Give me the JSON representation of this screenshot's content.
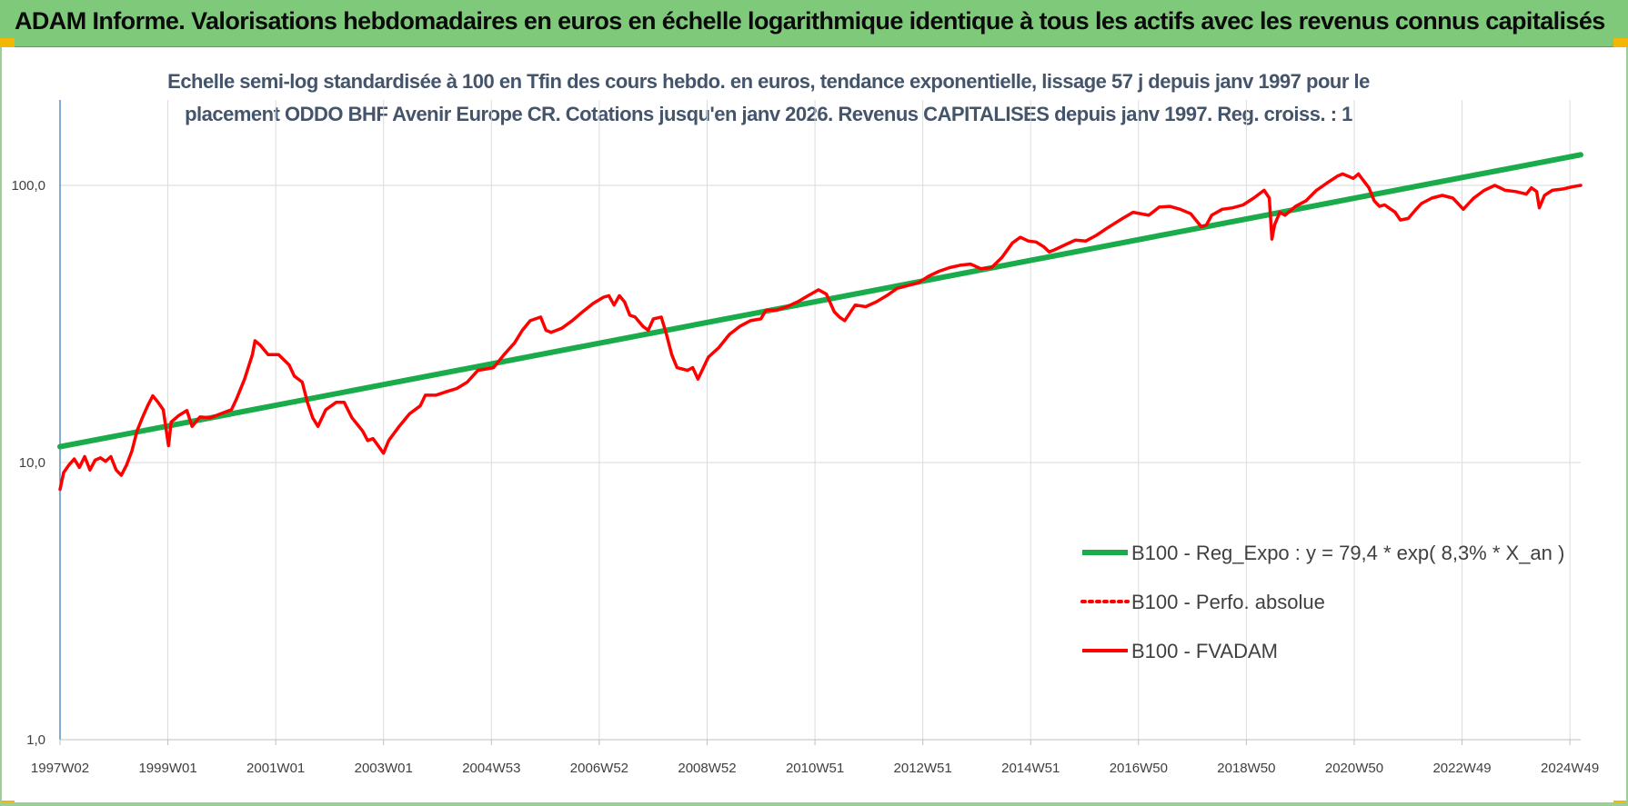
{
  "header": {
    "title": "ADAM Informe. Valorisations hebdomadaires en euros en échelle logarithmique identique à tous les actifs avec les revenus connus capitalisés"
  },
  "chart_data": {
    "type": "line",
    "title_line1": "Echelle semi-log standardisée à 100 en Tfin des cours hebdo. en euros, tendance exponentielle, lissage 57 j depuis janv 1997 pour le",
    "title_line2": "placement ODDO BHF Avenir Europe CR. Cotations jusqu'en janv 2026. Revenus CAPITALISES depuis janv 1997. Reg. croiss. : 1",
    "y_scale": "log",
    "ylim": [
      1,
      200
    ],
    "y_ticks": [
      "1,0",
      "10,0",
      "100,0"
    ],
    "x_range": [
      1997.03,
      2026.04
    ],
    "x_ticks": [
      "1997W02",
      "1999W01",
      "2001W01",
      "2003W01",
      "2004W53",
      "2006W52",
      "2008W52",
      "2010W51",
      "2012W51",
      "2014W51",
      "2016W50",
      "2018W50",
      "2020W50",
      "2022W49",
      "2024W49"
    ],
    "grid": "vertical and horizontal",
    "legend_position": "bottom-right",
    "series": [
      {
        "name": "B100 - Reg_Expo : y = 79,4 * exp( 8,3% *  X_an )",
        "color": "#1aab4a",
        "style": "solid",
        "points": [
          [
            1997.03,
            11.4
          ],
          [
            2026.04,
            129
          ]
        ]
      },
      {
        "name": "B100 - Perfo. absolue",
        "color": "#ff0000",
        "style": "dotted",
        "points": []
      },
      {
        "name": "B100 - FVADAM",
        "color": "#ff0000",
        "style": "solid",
        "points": [
          [
            1997.03,
            8.0
          ],
          [
            1997.1,
            9.2
          ],
          [
            1997.2,
            9.8
          ],
          [
            1997.3,
            10.3
          ],
          [
            1997.4,
            9.6
          ],
          [
            1997.5,
            10.5
          ],
          [
            1997.6,
            9.4
          ],
          [
            1997.7,
            10.2
          ],
          [
            1997.8,
            10.4
          ],
          [
            1997.9,
            10.1
          ],
          [
            1998.0,
            10.5
          ],
          [
            1998.1,
            9.4
          ],
          [
            1998.2,
            9.0
          ],
          [
            1998.3,
            9.8
          ],
          [
            1998.4,
            11.0
          ],
          [
            1998.5,
            13.0
          ],
          [
            1998.6,
            14.5
          ],
          [
            1998.7,
            16.0
          ],
          [
            1998.8,
            17.4
          ],
          [
            1998.9,
            16.5
          ],
          [
            1999.0,
            15.5
          ],
          [
            1999.1,
            11.5
          ],
          [
            1999.15,
            14.0
          ],
          [
            1999.3,
            14.8
          ],
          [
            1999.45,
            15.4
          ],
          [
            1999.55,
            13.5
          ],
          [
            1999.7,
            14.6
          ],
          [
            1999.9,
            14.5
          ],
          [
            2000.1,
            15.0
          ],
          [
            2000.3,
            15.5
          ],
          [
            2000.4,
            17.0
          ],
          [
            2000.55,
            20.0
          ],
          [
            2000.7,
            24.5
          ],
          [
            2000.75,
            27.5
          ],
          [
            2000.85,
            26.5
          ],
          [
            2001.0,
            24.5
          ],
          [
            2001.2,
            24.5
          ],
          [
            2001.4,
            22.5
          ],
          [
            2001.5,
            20.5
          ],
          [
            2001.65,
            19.5
          ],
          [
            2001.75,
            16.5
          ],
          [
            2001.85,
            14.5
          ],
          [
            2001.95,
            13.5
          ],
          [
            2002.1,
            15.5
          ],
          [
            2002.3,
            16.5
          ],
          [
            2002.45,
            16.5
          ],
          [
            2002.6,
            14.5
          ],
          [
            2002.8,
            13.0
          ],
          [
            2002.9,
            12.0
          ],
          [
            2003.0,
            12.2
          ],
          [
            2003.1,
            11.5
          ],
          [
            2003.2,
            10.8
          ],
          [
            2003.3,
            12.0
          ],
          [
            2003.5,
            13.5
          ],
          [
            2003.7,
            15.0
          ],
          [
            2003.9,
            16.0
          ],
          [
            2004.0,
            17.5
          ],
          [
            2004.2,
            17.5
          ],
          [
            2004.4,
            18.0
          ],
          [
            2004.6,
            18.5
          ],
          [
            2004.8,
            19.5
          ],
          [
            2005.0,
            21.5
          ],
          [
            2005.3,
            22.0
          ],
          [
            2005.5,
            24.5
          ],
          [
            2005.7,
            27.0
          ],
          [
            2005.85,
            30.0
          ],
          [
            2006.0,
            32.5
          ],
          [
            2006.2,
            33.5
          ],
          [
            2006.3,
            30.0
          ],
          [
            2006.4,
            29.5
          ],
          [
            2006.6,
            30.5
          ],
          [
            2006.8,
            32.5
          ],
          [
            2007.0,
            35.0
          ],
          [
            2007.2,
            37.5
          ],
          [
            2007.4,
            39.5
          ],
          [
            2007.5,
            40.0
          ],
          [
            2007.6,
            37.0
          ],
          [
            2007.7,
            40.0
          ],
          [
            2007.8,
            38.0
          ],
          [
            2007.9,
            34.0
          ],
          [
            2008.0,
            33.5
          ],
          [
            2008.15,
            31.0
          ],
          [
            2008.25,
            30.0
          ],
          [
            2008.35,
            33.0
          ],
          [
            2008.5,
            33.5
          ],
          [
            2008.6,
            29.0
          ],
          [
            2008.7,
            24.5
          ],
          [
            2008.8,
            22.0
          ],
          [
            2009.0,
            21.5
          ],
          [
            2009.1,
            22.0
          ],
          [
            2009.2,
            20.0
          ],
          [
            2009.4,
            24.0
          ],
          [
            2009.6,
            26.0
          ],
          [
            2009.8,
            29.0
          ],
          [
            2010.0,
            31.0
          ],
          [
            2010.2,
            32.5
          ],
          [
            2010.4,
            33.0
          ],
          [
            2010.5,
            35.5
          ],
          [
            2010.7,
            35.5
          ],
          [
            2010.9,
            36.5
          ],
          [
            2011.1,
            38.0
          ],
          [
            2011.3,
            40.0
          ],
          [
            2011.5,
            42.0
          ],
          [
            2011.65,
            40.5
          ],
          [
            2011.8,
            35.0
          ],
          [
            2011.9,
            33.5
          ],
          [
            2012.0,
            32.5
          ],
          [
            2012.2,
            37.0
          ],
          [
            2012.4,
            36.5
          ],
          [
            2012.6,
            38.0
          ],
          [
            2012.8,
            40.0
          ],
          [
            2013.0,
            42.5
          ],
          [
            2013.2,
            43.5
          ],
          [
            2013.4,
            44.5
          ],
          [
            2013.6,
            47.0
          ],
          [
            2013.8,
            49.0
          ],
          [
            2014.0,
            50.5
          ],
          [
            2014.2,
            51.5
          ],
          [
            2014.4,
            52.0
          ],
          [
            2014.6,
            50.0
          ],
          [
            2014.8,
            50.5
          ],
          [
            2015.0,
            55.0
          ],
          [
            2015.2,
            62.0
          ],
          [
            2015.35,
            65.0
          ],
          [
            2015.5,
            63.0
          ],
          [
            2015.65,
            62.5
          ],
          [
            2015.8,
            60.0
          ],
          [
            2015.9,
            57.5
          ],
          [
            2016.0,
            58.5
          ],
          [
            2016.2,
            61.0
          ],
          [
            2016.4,
            63.5
          ],
          [
            2016.6,
            63.0
          ],
          [
            2016.8,
            66.0
          ],
          [
            2017.0,
            70.0
          ],
          [
            2017.3,
            76.0
          ],
          [
            2017.5,
            80.0
          ],
          [
            2017.8,
            78.0
          ],
          [
            2018.0,
            83.5
          ],
          [
            2018.2,
            84.0
          ],
          [
            2018.4,
            82.0
          ],
          [
            2018.6,
            79.0
          ],
          [
            2018.8,
            71.0
          ],
          [
            2018.9,
            72.0
          ],
          [
            2019.0,
            78.0
          ],
          [
            2019.2,
            82.0
          ],
          [
            2019.4,
            83.0
          ],
          [
            2019.6,
            85.0
          ],
          [
            2019.8,
            90.0
          ],
          [
            2020.0,
            96.0
          ],
          [
            2020.1,
            90.0
          ],
          [
            2020.15,
            64.0
          ],
          [
            2020.2,
            72.0
          ],
          [
            2020.3,
            80.0
          ],
          [
            2020.4,
            78.0
          ],
          [
            2020.6,
            84.0
          ],
          [
            2020.8,
            88.0
          ],
          [
            2021.0,
            96.0
          ],
          [
            2021.2,
            102.0
          ],
          [
            2021.4,
            108.0
          ],
          [
            2021.5,
            110.0
          ],
          [
            2021.7,
            106.0
          ],
          [
            2021.8,
            110.0
          ],
          [
            2022.0,
            98.0
          ],
          [
            2022.1,
            88.0
          ],
          [
            2022.2,
            84.0
          ],
          [
            2022.3,
            85.0
          ],
          [
            2022.5,
            80.0
          ],
          [
            2022.6,
            75.0
          ],
          [
            2022.75,
            76.0
          ],
          [
            2022.9,
            82.0
          ],
          [
            2023.0,
            86.0
          ],
          [
            2023.2,
            90.0
          ],
          [
            2023.4,
            92.0
          ],
          [
            2023.6,
            90.0
          ],
          [
            2023.7,
            86.0
          ],
          [
            2023.8,
            82.0
          ],
          [
            2023.9,
            86.0
          ],
          [
            2024.0,
            90.0
          ],
          [
            2024.2,
            96.0
          ],
          [
            2024.4,
            100.0
          ],
          [
            2024.6,
            96.0
          ],
          [
            2024.8,
            95.0
          ],
          [
            2025.0,
            93.0
          ],
          [
            2025.1,
            98.0
          ],
          [
            2025.2,
            95.0
          ],
          [
            2025.25,
            83.0
          ],
          [
            2025.35,
            92.0
          ],
          [
            2025.5,
            96.0
          ],
          [
            2025.7,
            97.0
          ],
          [
            2025.9,
            99.0
          ],
          [
            2026.04,
            100.0
          ]
        ]
      }
    ]
  }
}
